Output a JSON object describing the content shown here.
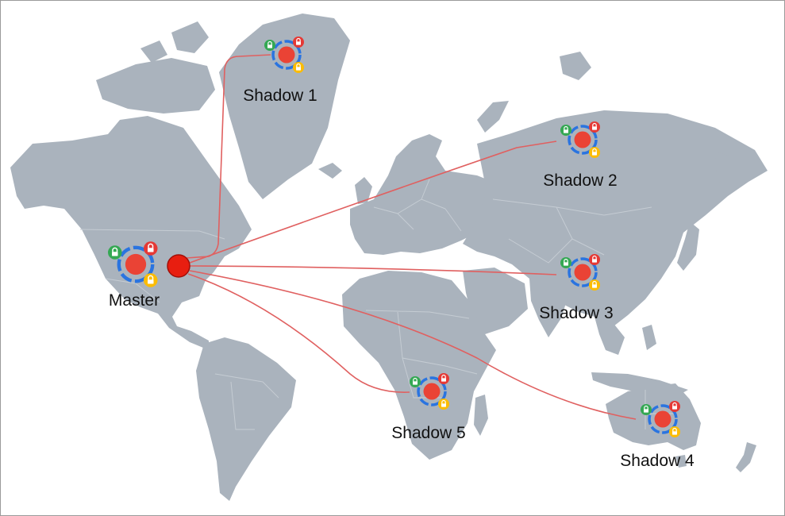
{
  "colors": {
    "land": "#aab3bd",
    "border": "#c5ccd3",
    "link": "#e06060",
    "node_core": "#ea4335",
    "node_ring": "#2a74e0",
    "badge_green": "#34a853",
    "badge_red": "#e53935",
    "badge_yellow": "#fbbc05",
    "origin": "#e81e10"
  },
  "icons": {
    "origin": "origin-dot-icon",
    "node": "replica-node-icon",
    "lock": "padlock-icon"
  },
  "nodes": {
    "master": {
      "label": "Master"
    },
    "shadow1": {
      "label": "Shadow 1"
    },
    "shadow2": {
      "label": "Shadow 2"
    },
    "shadow3": {
      "label": "Shadow 3"
    },
    "shadow4": {
      "label": "Shadow 4"
    },
    "shadow5": {
      "label": "Shadow 5"
    }
  }
}
